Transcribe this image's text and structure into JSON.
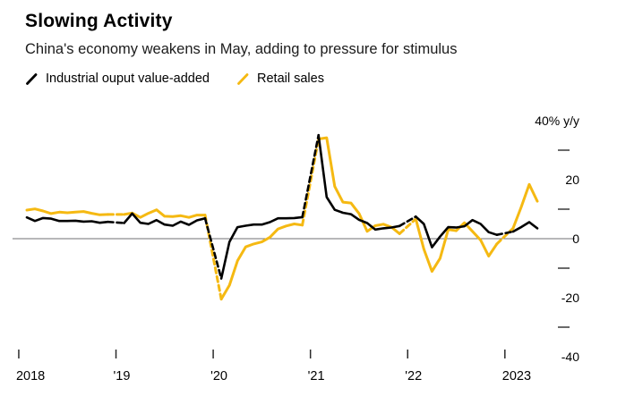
{
  "header": {
    "title": "Slowing Activity",
    "subtitle": "China's economy weakens in May, adding to pressure for stimulus"
  },
  "legend": {
    "items": [
      {
        "label": "Industrial ouput value-added",
        "color": "#000000"
      },
      {
        "label": "Retail sales",
        "color": "#F5B912"
      }
    ]
  },
  "chart_data": {
    "type": "line",
    "title": "Slowing Activity",
    "subtitle": "China's economy weakens in May, adding to pressure for stimulus",
    "unit": "% y/y",
    "legend_position": "top-left",
    "gridlines": "zero-line-only",
    "dashed_segments": "Dec-to-Feb connectors (Jan-Feb combined data) drawn dashed",
    "x": [
      "2018-02",
      "2018-03",
      "2018-04",
      "2018-05",
      "2018-06",
      "2018-07",
      "2018-08",
      "2018-09",
      "2018-10",
      "2018-11",
      "2018-12",
      "2019-02",
      "2019-03",
      "2019-04",
      "2019-05",
      "2019-06",
      "2019-07",
      "2019-08",
      "2019-09",
      "2019-10",
      "2019-11",
      "2019-12",
      "2020-02",
      "2020-03",
      "2020-04",
      "2020-05",
      "2020-06",
      "2020-07",
      "2020-08",
      "2020-09",
      "2020-10",
      "2020-11",
      "2020-12",
      "2021-02",
      "2021-03",
      "2021-04",
      "2021-05",
      "2021-06",
      "2021-07",
      "2021-08",
      "2021-09",
      "2021-10",
      "2021-11",
      "2021-12",
      "2022-02",
      "2022-03",
      "2022-04",
      "2022-05",
      "2022-06",
      "2022-07",
      "2022-08",
      "2022-09",
      "2022-10",
      "2022-11",
      "2022-12",
      "2023-02",
      "2023-03",
      "2023-04",
      "2023-05"
    ],
    "series": [
      {
        "name": "Industrial ouput value-added",
        "color": "#000000",
        "values": [
          7.2,
          6.0,
          7.0,
          6.8,
          6.0,
          6.0,
          6.1,
          5.8,
          5.9,
          5.4,
          5.7,
          5.3,
          8.5,
          5.4,
          5.0,
          6.3,
          4.8,
          4.4,
          5.8,
          4.7,
          6.2,
          6.9,
          -13.5,
          -1.1,
          3.9,
          4.4,
          4.8,
          4.8,
          5.6,
          6.9,
          6.9,
          7.0,
          7.3,
          35.1,
          14.1,
          9.8,
          8.8,
          8.3,
          6.4,
          5.3,
          3.1,
          3.5,
          3.8,
          4.3,
          7.5,
          5.0,
          -2.9,
          0.7,
          3.9,
          3.8,
          4.2,
          6.3,
          5.0,
          2.2,
          1.3,
          2.4,
          3.9,
          5.6,
          3.5
        ]
      },
      {
        "name": "Retail sales",
        "color": "#F5B912",
        "values": [
          9.7,
          10.1,
          9.4,
          8.5,
          9.0,
          8.8,
          9.0,
          9.2,
          8.6,
          8.1,
          8.2,
          8.2,
          8.7,
          7.2,
          8.6,
          9.8,
          7.6,
          7.5,
          7.8,
          7.2,
          8.0,
          8.0,
          -20.5,
          -15.8,
          -7.5,
          -2.8,
          -1.8,
          -1.1,
          0.5,
          3.3,
          4.3,
          5.0,
          4.6,
          33.8,
          34.2,
          17.7,
          12.4,
          12.1,
          8.5,
          2.5,
          4.4,
          4.9,
          3.9,
          1.7,
          6.7,
          -3.5,
          -11.1,
          -6.7,
          3.1,
          2.7,
          5.4,
          2.5,
          -0.5,
          -5.9,
          -1.8,
          3.5,
          10.6,
          18.4,
          12.7
        ]
      }
    ],
    "ylim": [
      -40,
      40
    ],
    "yticks": [
      {
        "value": 40,
        "label": "40% y/y"
      },
      {
        "value": 20,
        "label": "20"
      },
      {
        "value": 0,
        "label": "0"
      },
      {
        "value": -20,
        "label": "-20"
      },
      {
        "value": -40,
        "label": "-40"
      }
    ],
    "yticks_minor": [
      30,
      10,
      -10,
      -30
    ],
    "xticks": [
      {
        "pos": "2018-01",
        "label": "2018"
      },
      {
        "pos": "2019-01",
        "label": "'19"
      },
      {
        "pos": "2020-01",
        "label": "'20"
      },
      {
        "pos": "2021-01",
        "label": "'21"
      },
      {
        "pos": "2022-01",
        "label": "'22"
      },
      {
        "pos": "2023-01",
        "label": "2023"
      }
    ]
  }
}
